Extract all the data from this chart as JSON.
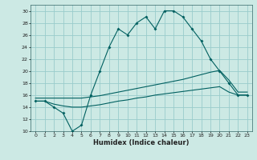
{
  "xlabel": "Humidex (Indice chaleur)",
  "bg_color": "#cce9e4",
  "grid_color": "#99cccc",
  "line_color": "#006060",
  "xlim": [
    -0.5,
    23.5
  ],
  "ylim": [
    10,
    31
  ],
  "yticks": [
    10,
    12,
    14,
    16,
    18,
    20,
    22,
    24,
    26,
    28,
    30
  ],
  "xticks": [
    0,
    1,
    2,
    3,
    4,
    5,
    6,
    7,
    8,
    9,
    10,
    11,
    12,
    13,
    14,
    15,
    16,
    17,
    18,
    19,
    20,
    21,
    22,
    23
  ],
  "series1_x": [
    0,
    1,
    2,
    3,
    4,
    5,
    6,
    7,
    8,
    9,
    10,
    11,
    12,
    13,
    14,
    15,
    16,
    17,
    18,
    19,
    20,
    21,
    22,
    23
  ],
  "series1_y": [
    15,
    15,
    14,
    13,
    10,
    11,
    16,
    20,
    24,
    27,
    26,
    28,
    29,
    27,
    30,
    30,
    29,
    27,
    25,
    22,
    20,
    18,
    16,
    16
  ],
  "series2_x": [
    0,
    1,
    2,
    3,
    4,
    5,
    6,
    7,
    8,
    9,
    10,
    11,
    12,
    13,
    14,
    15,
    16,
    17,
    18,
    19,
    20,
    21,
    22,
    23
  ],
  "series2_y": [
    15.5,
    15.5,
    15.5,
    15.5,
    15.5,
    15.5,
    15.7,
    15.9,
    16.2,
    16.5,
    16.8,
    17.1,
    17.4,
    17.7,
    18.0,
    18.3,
    18.6,
    19.0,
    19.4,
    19.8,
    20.1,
    18.5,
    16.5,
    16.5
  ],
  "series3_x": [
    0,
    1,
    2,
    3,
    4,
    5,
    6,
    7,
    8,
    9,
    10,
    11,
    12,
    13,
    14,
    15,
    16,
    17,
    18,
    19,
    20,
    21,
    22,
    23
  ],
  "series3_y": [
    15.0,
    15.0,
    14.5,
    14.2,
    14.0,
    14.0,
    14.2,
    14.4,
    14.7,
    15.0,
    15.2,
    15.5,
    15.7,
    16.0,
    16.2,
    16.4,
    16.6,
    16.8,
    17.0,
    17.2,
    17.4,
    16.5,
    16.0,
    16.0
  ]
}
